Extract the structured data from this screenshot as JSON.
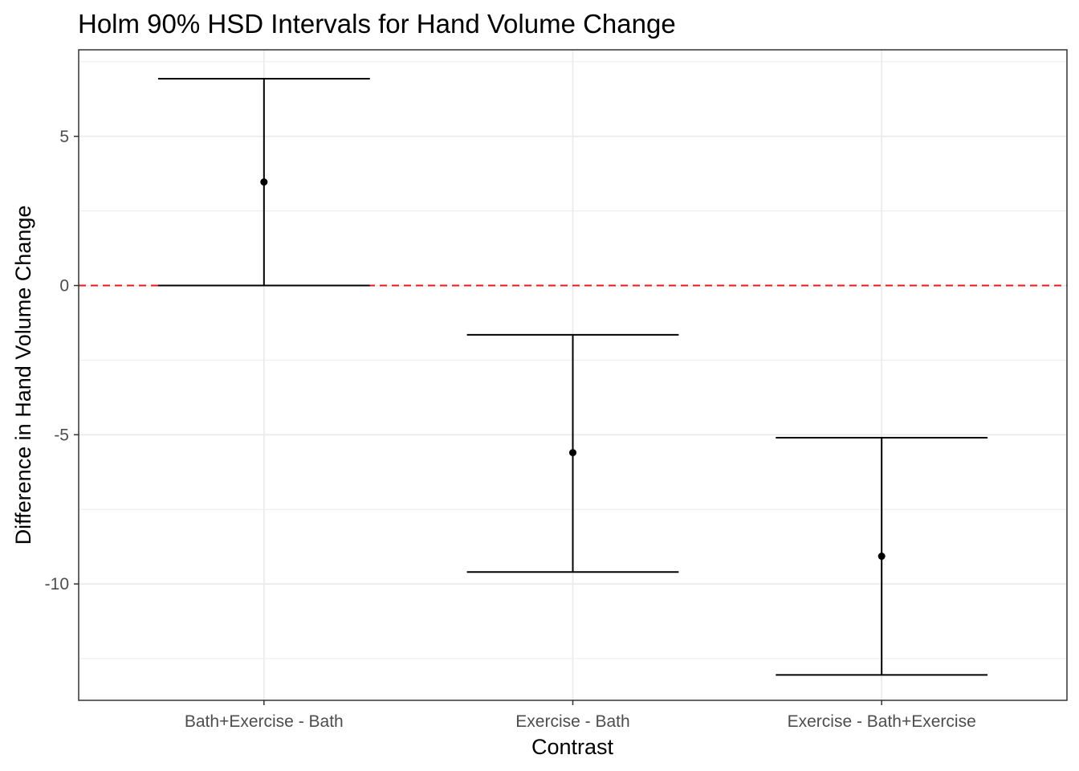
{
  "chart_data": {
    "type": "errorbar",
    "title": "Holm 90% HSD Intervals for Hand Volume Change",
    "xlabel": "Contrast",
    "ylabel": "Difference in Hand Volume Change",
    "categories": [
      "Bath+Exercise - Bath",
      "Exercise - Bath",
      "Exercise - Bath+Exercise"
    ],
    "estimates": [
      3.47,
      -5.6,
      -9.07
    ],
    "lower": [
      0.0,
      -9.6,
      -13.05
    ],
    "upper": [
      6.93,
      -1.65,
      -5.1
    ],
    "ylim": [
      -13.9,
      7.9
    ],
    "y_ticks": [
      -10,
      -5,
      0,
      5
    ],
    "y_tick_labels": [
      "-10",
      "-5",
      "0",
      "5"
    ],
    "reference_line": {
      "y": 0,
      "style": "dashed",
      "color": "#e41a1c"
    },
    "grid": true,
    "legend": "none",
    "colors": {
      "marks": "#000000",
      "grid": "#ebebeb",
      "panel_border": "#333333",
      "reference": "#e41a1c"
    }
  }
}
